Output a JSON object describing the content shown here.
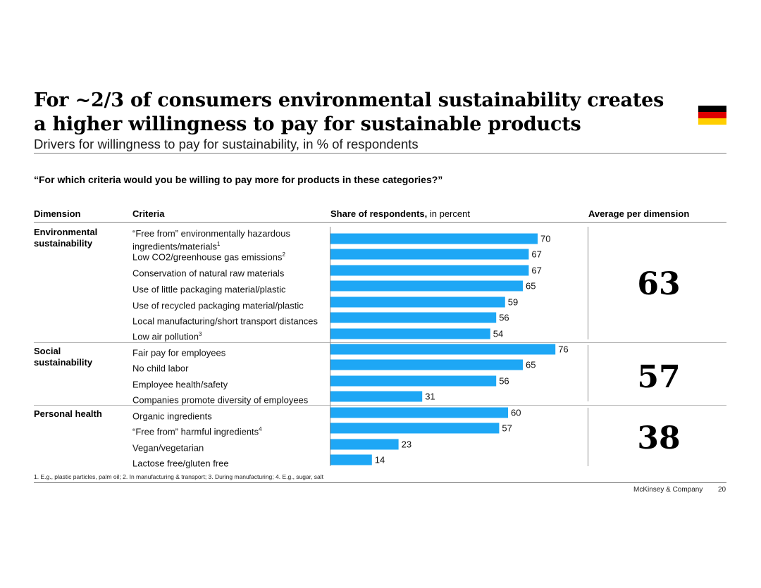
{
  "title": "For ~2/3 of consumers environmental sustainability creates a higher willingness to pay for sustainable products",
  "subtitle": "Drivers for willingness to pay for sustainability, in % of respondents",
  "question": "“For which criteria would you be willing to pay more for products in these categories?”",
  "headers": {
    "dimension": "Dimension",
    "criteria": "Criteria",
    "share_bold": "Share of respondents,",
    "share_light": " in percent",
    "average": "Average per dimension"
  },
  "colors": {
    "bar": "#1ea7f5",
    "flag_black": "#000000",
    "flag_red": "#dd0000",
    "flag_gold": "#ffce00"
  },
  "dimensions": [
    {
      "label": "Environmental\nsustainability",
      "average": "63"
    },
    {
      "label": "Social\nsustainability",
      "average": "57"
    },
    {
      "label": "Personal health",
      "average": "38"
    }
  ],
  "criteria": [
    {
      "text": "“Free from” environmentally hazardous ingredients/materials",
      "sup": "1"
    },
    {
      "text": "Low CO2/greenhouse gas emissions",
      "sup": "2"
    },
    {
      "text": "Conservation of natural raw materials",
      "sup": ""
    },
    {
      "text": "Use of little packaging material/plastic",
      "sup": ""
    },
    {
      "text": "Use of recycled packaging material/plastic",
      "sup": ""
    },
    {
      "text": "Local manufacturing/short transport distances",
      "sup": ""
    },
    {
      "text": "Low air pollution",
      "sup": "3"
    },
    {
      "text": "Fair pay for employees",
      "sup": ""
    },
    {
      "text": "No child labor",
      "sup": ""
    },
    {
      "text": "Employee health/safety",
      "sup": ""
    },
    {
      "text": "Companies promote diversity of employees",
      "sup": ""
    },
    {
      "text": "Organic ingredients",
      "sup": ""
    },
    {
      "text": "“Free from” harmful ingredients",
      "sup": "4"
    },
    {
      "text": "Vegan/vegetarian",
      "sup": ""
    },
    {
      "text": "Lactose free/gluten free",
      "sup": ""
    }
  ],
  "chart_data": {
    "type": "bar",
    "orientation": "horizontal",
    "categories": [
      "“Free from” environmentally hazardous ingredients/materials",
      "Low CO2/greenhouse gas emissions",
      "Conservation of natural raw materials",
      "Use of little packaging material/plastic",
      "Use of recycled packaging material/plastic",
      "Local manufacturing/short transport distances",
      "Low air pollution",
      "Fair pay for employees",
      "No child labor",
      "Employee health/safety",
      "Companies promote diversity of employees",
      "Organic ingredients",
      "“Free from” harmful ingredients",
      "Vegan/vegetarian",
      "Lactose free/gluten free"
    ],
    "values": [
      70,
      67,
      67,
      65,
      59,
      56,
      54,
      76,
      65,
      56,
      31,
      60,
      57,
      23,
      14
    ],
    "groups": [
      "Environmental sustainability",
      "Social sustainability",
      "Personal health"
    ],
    "group_sizes": [
      7,
      4,
      4
    ],
    "group_averages": [
      63,
      57,
      38
    ],
    "xlabel": "Share of respondents, in percent",
    "xlim": [
      0,
      100
    ],
    "data_labels": true,
    "grid": false
  },
  "footnote": "1. E.g., plastic particles, palm oil;  2. In manufacturing & transport; 3. During manufacturing; 4. E.g., sugar, salt",
  "brand": "McKinsey & Company",
  "page_number": "20"
}
